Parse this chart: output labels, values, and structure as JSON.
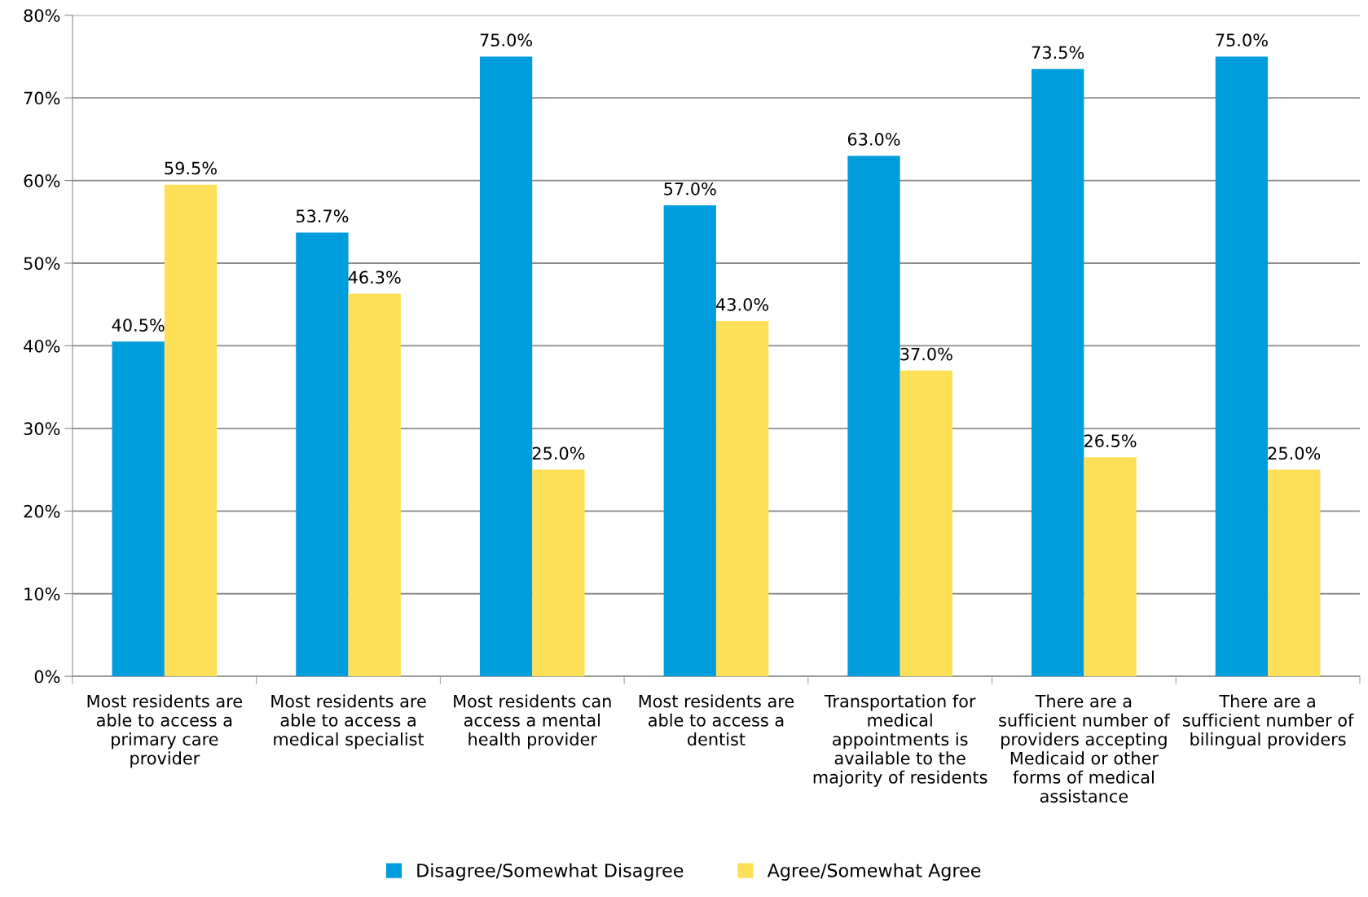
{
  "chart_data": {
    "type": "bar",
    "categories": [
      "Most residents are\nable to access a\nprimary care\nprovider",
      "Most residents are\nable to access a\nmedical specialist",
      "Most residents can\naccess a mental\nhealth provider",
      "Most residents are\nable to access a\ndentist",
      "Transportation for\nmedical\nappointments is\navailable to the\nmajority of residents",
      "There are a\nsufficient number of\nproviders accepting\nMedicaid or other\nforms of medical\nassistance",
      "There are a\nsufficient number of\nbilingual providers"
    ],
    "series": [
      {
        "name": "Disagree/Somewhat Disagree",
        "color": "#009ddc",
        "values": [
          40.5,
          53.7,
          75.0,
          57.0,
          63.0,
          73.5,
          75.0
        ],
        "value_labels": [
          "40.5%",
          "53.7%",
          "75.0%",
          "57.0%",
          "63.0%",
          "73.5%",
          "75.0%"
        ]
      },
      {
        "name": "Agree/Somewhat Agree",
        "color": "#fedf58",
        "values": [
          59.5,
          46.3,
          25.0,
          43.0,
          37.0,
          26.5,
          25.0
        ],
        "value_labels": [
          "59.5%",
          "46.3%",
          "25.0%",
          "43.0%",
          "37.0%",
          "26.5%",
          "25.0%"
        ]
      }
    ],
    "ylim": [
      0,
      80
    ],
    "yticks": [
      {
        "value": 0,
        "label": "0%"
      },
      {
        "value": 10,
        "label": "10%"
      },
      {
        "value": 20,
        "label": "20%"
      },
      {
        "value": 30,
        "label": "30%"
      },
      {
        "value": 40,
        "label": "40%"
      },
      {
        "value": 50,
        "label": "50%"
      },
      {
        "value": 60,
        "label": "60%"
      },
      {
        "value": 70,
        "label": "70%"
      },
      {
        "value": 80,
        "label": "80%"
      }
    ],
    "grid": "y",
    "legend": "bottom"
  }
}
